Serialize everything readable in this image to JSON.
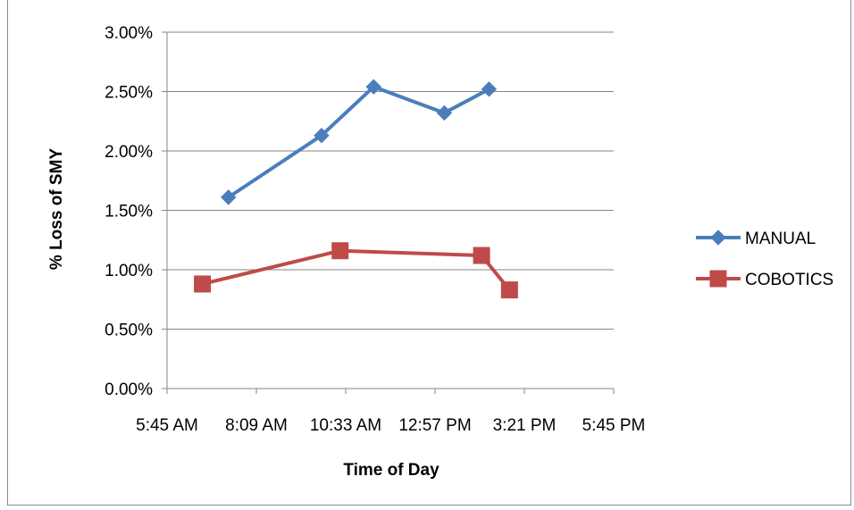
{
  "chart_data": {
    "type": "line",
    "title": "",
    "xlabel": "Time of Day",
    "ylabel": "% Loss of SMY",
    "x_tick_labels": [
      "5:45 AM",
      "8:09 AM",
      "10:33 AM",
      "12:57 PM",
      "3:21 PM",
      "5:45 PM"
    ],
    "x_ticks_hours": [
      5.75,
      8.15,
      10.55,
      12.95,
      15.35,
      17.75
    ],
    "xlim_hours": [
      5.75,
      17.75
    ],
    "y_tick_labels": [
      "0.00%",
      "0.50%",
      "1.00%",
      "1.50%",
      "2.00%",
      "2.50%",
      "3.00%"
    ],
    "y_ticks": [
      0.0,
      0.5,
      1.0,
      1.5,
      2.0,
      2.5,
      3.0
    ],
    "ylim": [
      0.0,
      3.0
    ],
    "grid": true,
    "legend_position": "right",
    "series": [
      {
        "name": "MANUAL",
        "color": "#4a7ebb",
        "marker": "diamond",
        "x_hours": [
          7.4,
          9.9,
          11.3,
          13.2,
          14.4
        ],
        "y": [
          1.61,
          2.13,
          2.54,
          2.32,
          2.52
        ]
      },
      {
        "name": "COBOTICS",
        "color": "#be4b48",
        "marker": "square",
        "x_hours": [
          6.7,
          10.4,
          14.2,
          14.95
        ],
        "y": [
          0.88,
          1.16,
          1.12,
          0.83
        ]
      }
    ]
  }
}
